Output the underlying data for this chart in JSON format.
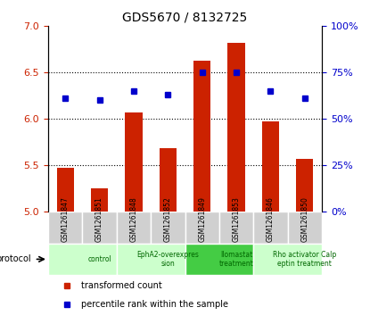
{
  "title": "GDS5670 / 8132725",
  "samples": [
    "GSM1261847",
    "GSM1261851",
    "GSM1261848",
    "GSM1261852",
    "GSM1261849",
    "GSM1261853",
    "GSM1261846",
    "GSM1261850"
  ],
  "bar_values": [
    5.47,
    5.25,
    6.07,
    5.68,
    6.63,
    6.82,
    5.97,
    5.57
  ],
  "dot_values": [
    61,
    60,
    65,
    63,
    75,
    75,
    65,
    61
  ],
  "bar_color": "#cc2200",
  "dot_color": "#0000cc",
  "ylim_left": [
    5.0,
    7.0
  ],
  "ylim_right": [
    0,
    100
  ],
  "yticks_left": [
    5.0,
    5.5,
    6.0,
    6.5,
    7.0
  ],
  "yticks_right": [
    0,
    25,
    50,
    75,
    100
  ],
  "ytick_labels_right": [
    "0%",
    "25%",
    "50%",
    "75%",
    "100%"
  ],
  "protocols": [
    {
      "label": "control",
      "start": 0,
      "end": 2,
      "color": "#ccffcc"
    },
    {
      "label": "EphA2-overexpres\nsion",
      "start": 2,
      "end": 4,
      "color": "#ccffcc"
    },
    {
      "label": "Ilomastat\ntreatment",
      "start": 4,
      "end": 6,
      "color": "#44cc44"
    },
    {
      "label": "Rho activator Calp\neptin treatment",
      "start": 6,
      "end": 8,
      "color": "#ccffcc"
    }
  ],
  "legend_items": [
    {
      "label": "transformed count",
      "color": "#cc2200",
      "marker": "s"
    },
    {
      "label": "percentile rank within the sample",
      "color": "#0000cc",
      "marker": "s"
    }
  ],
  "protocol_label": "protocol",
  "background_color": "#ffffff",
  "plot_bg_color": "#ffffff",
  "sample_cell_color": "#d0d0d0"
}
